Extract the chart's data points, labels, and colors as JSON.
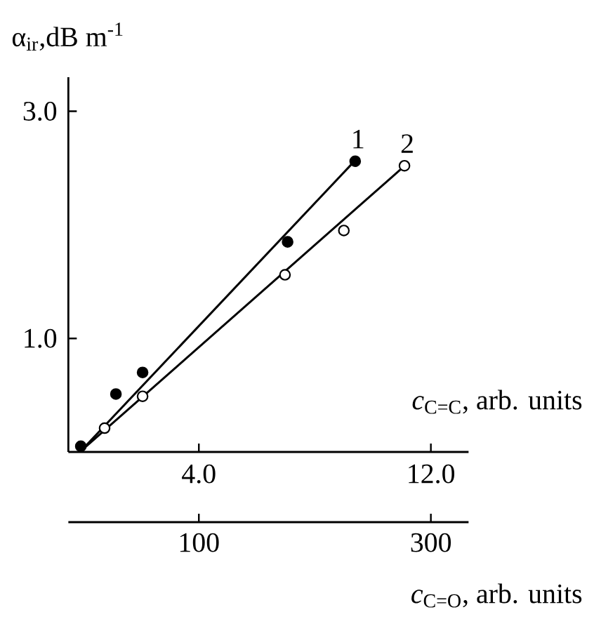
{
  "chart_data": {
    "type": "scatter",
    "xlabel": "*c*$_{C=C}$, arb. units",
    "ylabel": "α$_{ir}$,dB m$^{-1}$",
    "x2label": "*c*$_{C=O}$, arb. units",
    "xlim": [
      -0.5,
      13.3
    ],
    "xticks": [
      {
        "value": 4,
        "label": "4.0"
      },
      {
        "value": 12,
        "label": "12.0"
      }
    ],
    "x2lim": [
      -12.5,
      332.5
    ],
    "x2ticks": [
      100,
      300
    ],
    "ylim": [
      0,
      3.3
    ],
    "yticks": [
      {
        "value": 1,
        "label": "1.0"
      },
      {
        "value": 3,
        "label": "3.0"
      }
    ],
    "series": [
      {
        "name": "1",
        "marker": "circle",
        "color": "#000000",
        "x": [
          -0.07,
          1.14,
          2.06,
          7.06,
          9.39
        ],
        "values": [
          0.05,
          0.51,
          0.7,
          1.85,
          2.56
        ]
      },
      {
        "name": "2",
        "marker": "circle",
        "color": "#ffffff",
        "x": [
          0.75,
          2.06,
          6.97,
          9.0,
          11.09
        ],
        "values": [
          0.21,
          0.49,
          1.56,
          1.95,
          2.52
        ]
      },
      {
        "type": "line",
        "marker": "none",
        "color": "#000000",
        "x": [
          -0.1,
          9.4
        ],
        "values": [
          0.0,
          2.57
        ]
      },
      {
        "type": "line",
        "marker": "none",
        "color": "#000000",
        "x": [
          -0.1,
          11.1
        ],
        "values": [
          0.0,
          2.52
        ]
      }
    ]
  }
}
